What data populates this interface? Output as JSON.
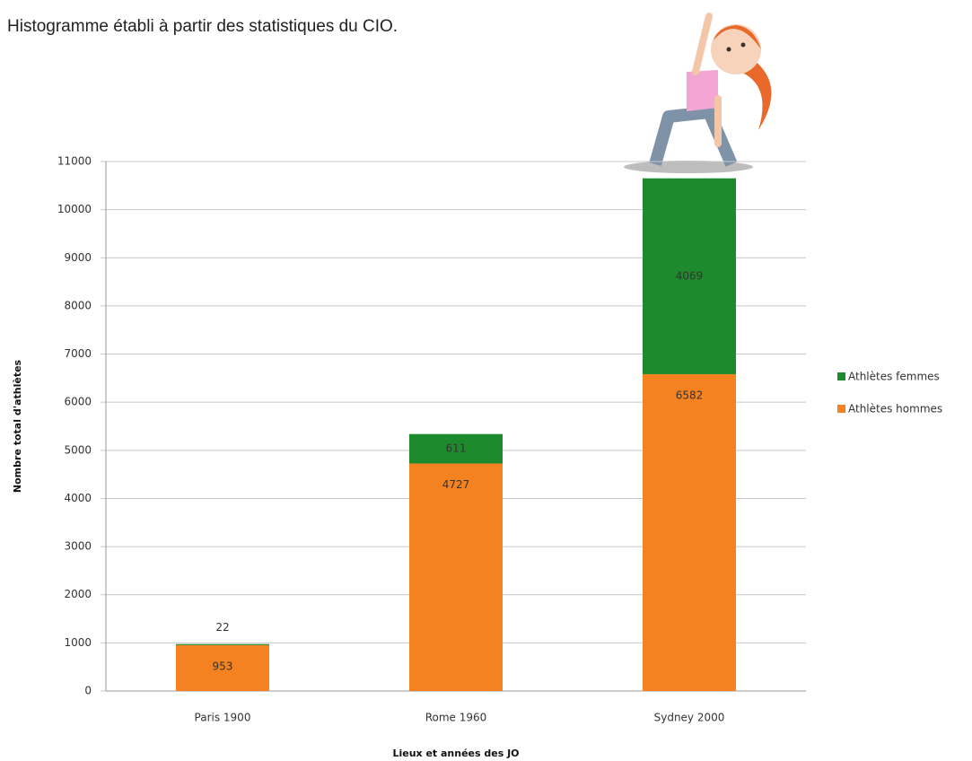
{
  "chart_data": {
    "type": "stacked_bar",
    "title": "Histogramme établi à partir des statistiques du CIO.",
    "x_label": "Lieux et années des JO",
    "y_label": "Nombre total d'athlètes",
    "categories": [
      "Paris 1900",
      "Rome 1960",
      "Sydney 2000"
    ],
    "series": [
      {
        "name": "Athlètes hommes",
        "color": "#f58220",
        "values": [
          953,
          4727,
          6582
        ]
      },
      {
        "name": "Athlètes femmes",
        "color": "#1e8a2e",
        "values": [
          22,
          611,
          4069
        ]
      }
    ],
    "ylim": [
      0,
      11000
    ],
    "yticks": [
      0,
      1000,
      2000,
      3000,
      4000,
      5000,
      6000,
      7000,
      8000,
      9000,
      10000,
      11000
    ],
    "grid": true,
    "legend": "right"
  }
}
